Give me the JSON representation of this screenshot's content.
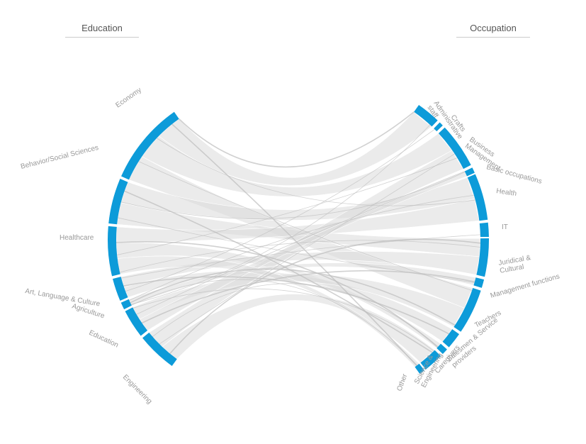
{
  "headers": {
    "left": "Education",
    "right": "Occupation"
  },
  "colors": {
    "arc": "#0d9bd9",
    "chord": "#bdbdbd",
    "band": "#dadada",
    "label": "#999999"
  },
  "education": [
    {
      "label": "Economy",
      "lines": [
        "Economy"
      ]
    },
    {
      "label": "Behavior/Social Sciences",
      "lines": [
        "Behavior/Social Sciences"
      ]
    },
    {
      "label": "Healthcare",
      "lines": [
        "Healthcare"
      ]
    },
    {
      "label": "Art, Language & Culture",
      "lines": [
        "Art, Language & Culture"
      ]
    },
    {
      "label": "Agriculture",
      "lines": [
        "Agriculture"
      ]
    },
    {
      "label": "Education",
      "lines": [
        "Education"
      ]
    },
    {
      "label": "Engineering",
      "lines": [
        "Engineering"
      ]
    }
  ],
  "occupation": [
    {
      "label": "Administrative staff",
      "lines": [
        "Administrative",
        "staff"
      ]
    },
    {
      "label": "Crafts",
      "lines": [
        "Crafts"
      ]
    },
    {
      "label": "Business Management",
      "lines": [
        "Business",
        "Management"
      ]
    },
    {
      "label": "Basic occupations",
      "lines": [
        "Basic occupations"
      ]
    },
    {
      "label": "Health",
      "lines": [
        "Health"
      ]
    },
    {
      "label": "IT",
      "lines": [
        "IT"
      ]
    },
    {
      "label": "Juridical & Cultural",
      "lines": [
        "Juridical &",
        "Cultural"
      ]
    },
    {
      "label": "Management functions",
      "lines": [
        "Management functions"
      ]
    },
    {
      "label": "Teachers",
      "lines": [
        "Teachers"
      ]
    },
    {
      "label": "Salesmen & Service providers",
      "lines": [
        "Salesmen & Service",
        "providers"
      ]
    },
    {
      "label": "Caregivers",
      "lines": [
        "Caregivers"
      ]
    },
    {
      "label": "Science & Engineering",
      "lines": [
        "Science &",
        "Engineering"
      ]
    },
    {
      "label": "Other",
      "lines": [
        "Other"
      ]
    }
  ]
}
